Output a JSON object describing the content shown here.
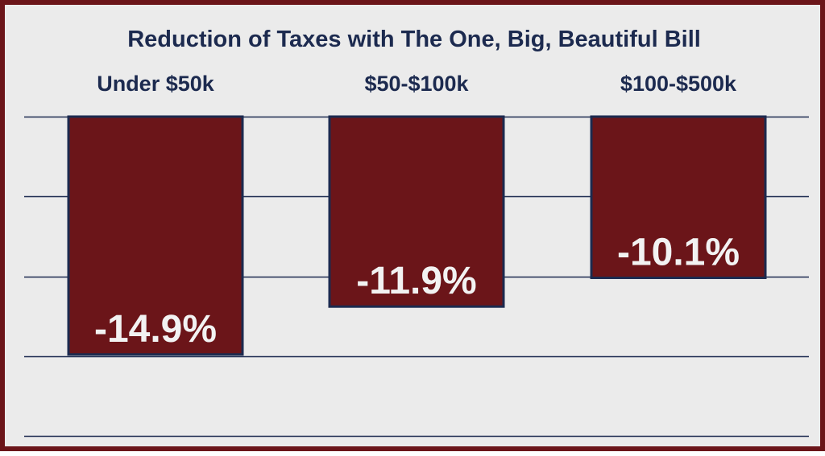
{
  "chart_data": {
    "type": "bar",
    "title": "Reduction of Taxes with The One, Big, Beautiful Bill",
    "categories": [
      "Under $50k",
      "$50-$100k",
      "$100-$500k"
    ],
    "values": [
      -14.9,
      -11.9,
      -10.1
    ],
    "data_labels": [
      "-14.9%",
      "-11.9%",
      "-10.1%"
    ],
    "ylim": [
      -20,
      0
    ],
    "grid": true,
    "legend": "none",
    "xlabel": "",
    "ylabel": "",
    "colors": {
      "bar": "#6b1519",
      "bar_outline": "#1c2a4f",
      "label": "#f2f2f2",
      "text": "#1c2a4f",
      "grid": "#1c2a4f",
      "background": "#ebebeb",
      "border": "#6b1519"
    }
  }
}
